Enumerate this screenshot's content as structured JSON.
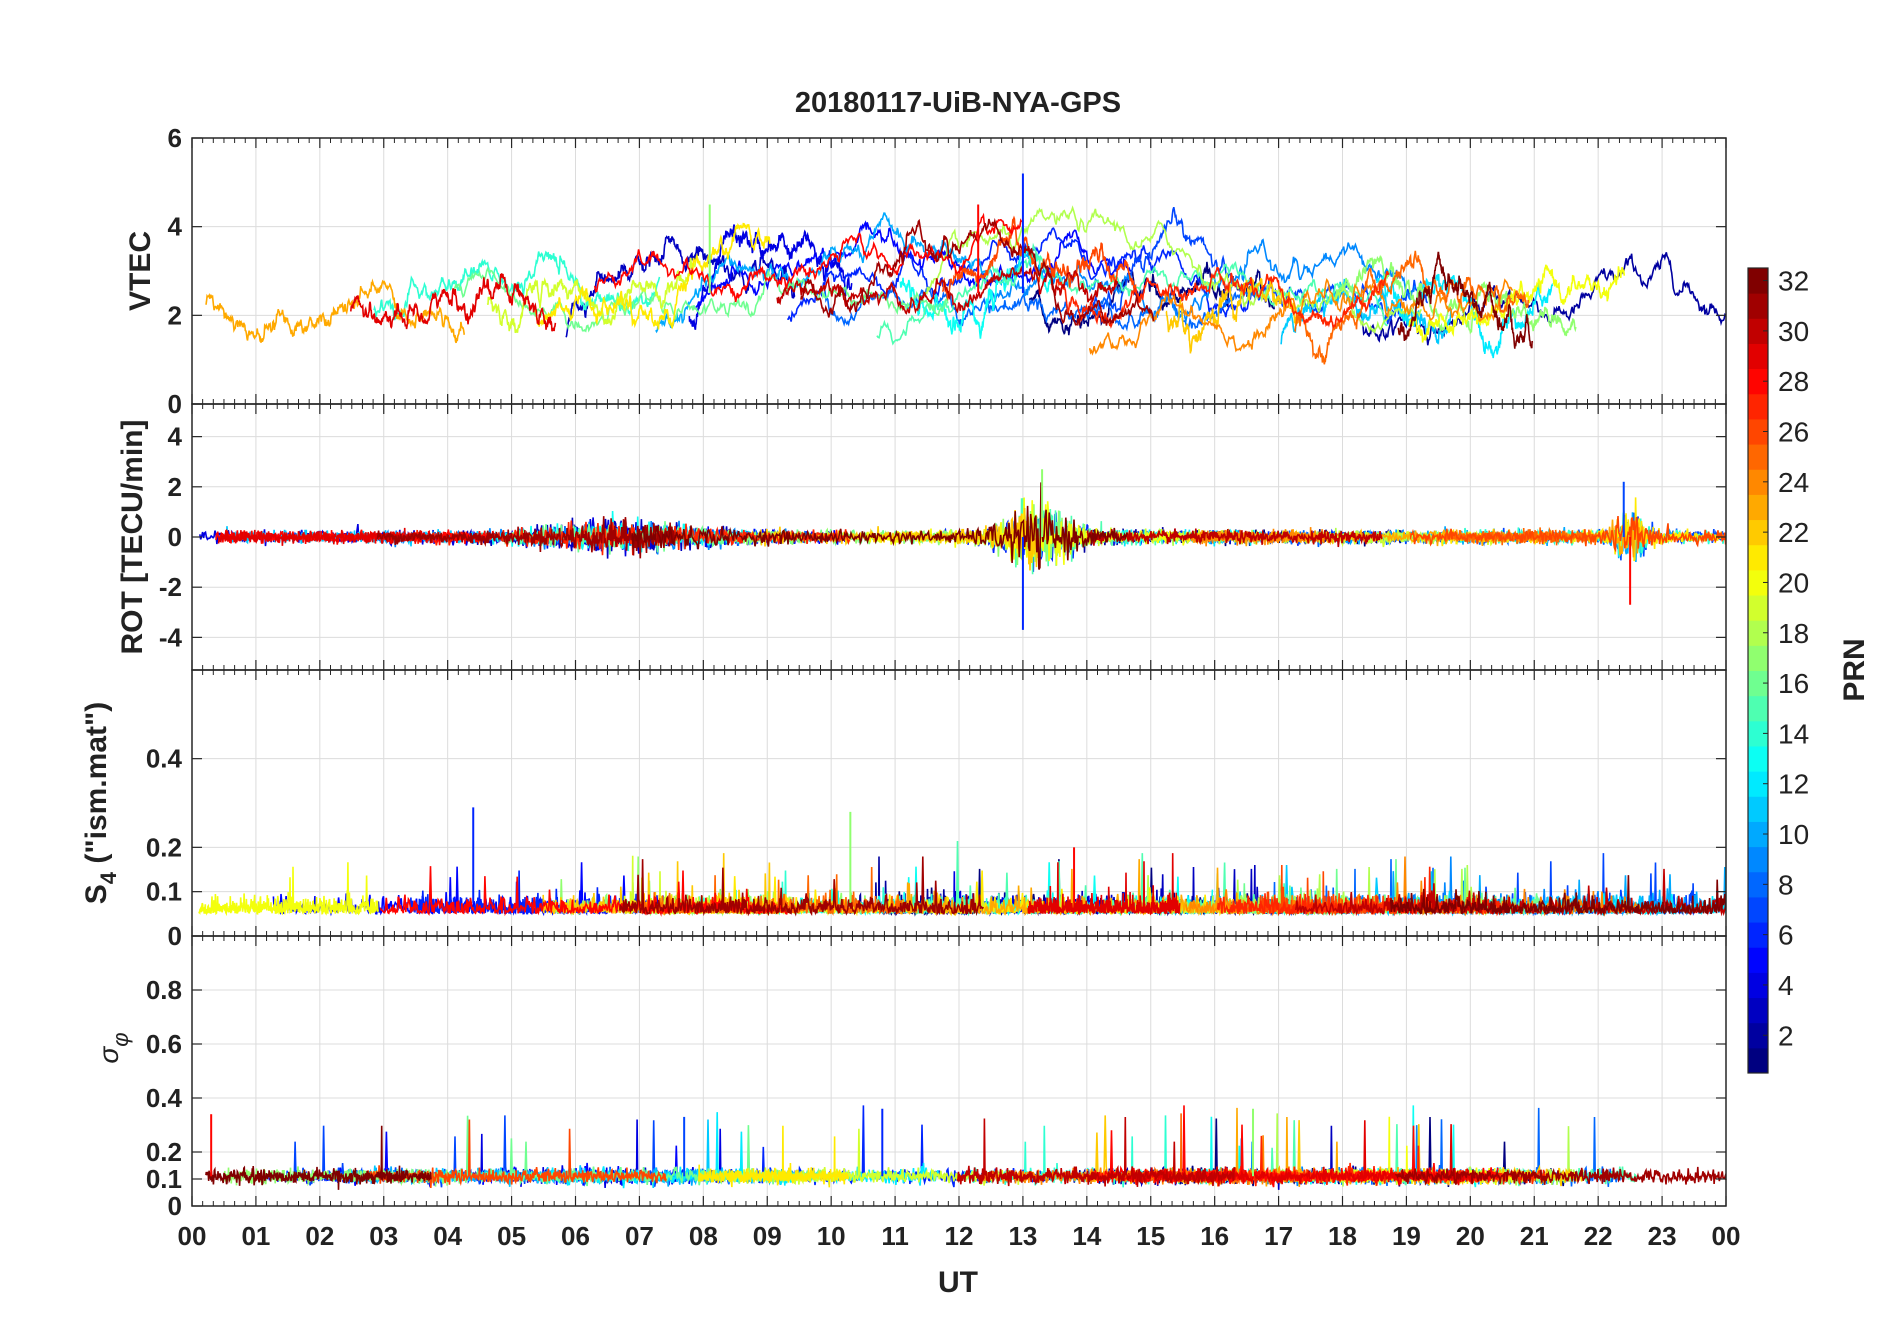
{
  "chart_data": {
    "type": "line",
    "title": "20180117-UiB-NYA-GPS",
    "xlabel": "UT",
    "x_tick_labels": [
      "00",
      "01",
      "02",
      "03",
      "04",
      "05",
      "06",
      "07",
      "08",
      "09",
      "10",
      "11",
      "12",
      "13",
      "14",
      "15",
      "16",
      "17",
      "18",
      "19",
      "20",
      "21",
      "22",
      "23",
      "00"
    ],
    "xlim": [
      0,
      24
    ],
    "grid": true,
    "colorbar": {
      "label": "PRN",
      "range": [
        1,
        32
      ],
      "ticks": [
        "2",
        "4",
        "6",
        "8",
        "10",
        "12",
        "14",
        "16",
        "18",
        "20",
        "22",
        "24",
        "26",
        "28",
        "30",
        "32"
      ],
      "colormap": "jet",
      "placement": "right"
    },
    "panels": [
      {
        "id": "vtec",
        "ylabel": "VTEC",
        "ylim": [
          0,
          6
        ],
        "y_ticks": [
          0,
          2,
          4,
          6
        ],
        "y_tick_labels": [
          "0",
          "2",
          "4",
          "6"
        ],
        "typical_range": [
          0.5,
          4.5
        ],
        "peaks": [
          {
            "ut": 13.0,
            "value": 5.2
          },
          {
            "ut": 8.1,
            "value": 4.5
          },
          {
            "ut": 12.3,
            "value": 4.5
          }
        ]
      },
      {
        "id": "rot",
        "ylabel": "ROT [TECU/min]",
        "ylim": [
          -5.3,
          5.3
        ],
        "y_ticks": [
          -4,
          -2,
          0,
          2,
          4
        ],
        "y_tick_labels": [
          "-4",
          "-2",
          "0",
          "2",
          "4"
        ],
        "typical_range": [
          -0.3,
          0.3
        ],
        "peaks": [
          {
            "ut": 13.0,
            "value": -3.7
          },
          {
            "ut": 13.3,
            "value": 2.7
          },
          {
            "ut": 22.5,
            "value": -2.7
          },
          {
            "ut": 22.4,
            "value": 2.2
          }
        ]
      },
      {
        "id": "s4",
        "ylabel": "S4 (\"ism.mat\")",
        "ylabel_main": "S",
        "ylabel_sub": "4",
        "ylabel_rest": " (\"ism.mat\")",
        "ylim": [
          0,
          0.6
        ],
        "y_ticks": [
          0,
          0.1,
          0.2,
          0.4
        ],
        "y_tick_labels": [
          "0",
          "0.1",
          "0.2",
          "0.4"
        ],
        "typical_range": [
          0.03,
          0.12
        ],
        "peaks": [
          {
            "ut": 4.4,
            "value": 0.29
          },
          {
            "ut": 10.3,
            "value": 0.28
          },
          {
            "ut": 13.8,
            "value": 0.2
          }
        ]
      },
      {
        "id": "sigma_phi",
        "ylabel": "σφ",
        "ylabel_main": "σ",
        "ylabel_sub": "φ",
        "ylim": [
          0,
          1
        ],
        "y_ticks": [
          0,
          0.1,
          0.2,
          0.4,
          0.6,
          0.8
        ],
        "y_tick_labels": [
          "0",
          "0.1",
          "0.2",
          "0.4",
          "0.6",
          "0.8"
        ],
        "typical_range": [
          0.08,
          0.14
        ],
        "peaks": [
          {
            "ut": 10.8,
            "value": 0.36
          },
          {
            "ut": 16.6,
            "value": 0.36
          },
          {
            "ut": 0.3,
            "value": 0.34
          },
          {
            "ut": 7.7,
            "value": 0.33
          }
        ]
      }
    ],
    "series_count": 32,
    "series_prns": [
      1,
      2,
      3,
      4,
      5,
      6,
      7,
      8,
      9,
      10,
      11,
      12,
      13,
      14,
      15,
      16,
      17,
      18,
      19,
      20,
      21,
      22,
      23,
      24,
      25,
      26,
      27,
      28,
      29,
      30,
      31,
      32
    ]
  }
}
